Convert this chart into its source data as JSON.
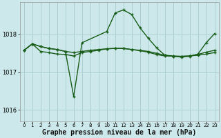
{
  "background_color": "#cce8eb",
  "grid_color": "#aacccc",
  "line_color": "#1a5c1a",
  "xlabel": "Graphe pression niveau de la mer (hPa)",
  "xlabel_fontsize": 7,
  "xlim": [
    -0.5,
    23.5
  ],
  "ylim": [
    1015.7,
    1018.85
  ],
  "yticks": [
    1016,
    1017,
    1018
  ],
  "xticks": [
    0,
    1,
    2,
    3,
    4,
    5,
    6,
    7,
    8,
    9,
    10,
    11,
    12,
    13,
    14,
    15,
    16,
    17,
    18,
    19,
    20,
    21,
    22,
    23
  ],
  "series1_x": [
    0,
    1,
    2,
    3,
    4,
    5,
    6,
    7,
    8,
    9,
    10,
    11,
    12,
    13,
    14,
    15,
    16,
    17,
    18,
    19,
    20,
    21,
    22,
    23
  ],
  "series1_y": [
    1017.58,
    1017.75,
    1017.68,
    1017.63,
    1017.6,
    1017.55,
    1017.52,
    1017.55,
    1017.58,
    1017.6,
    1017.62,
    1017.63,
    1017.63,
    1017.6,
    1017.58,
    1017.55,
    1017.5,
    1017.45,
    1017.43,
    1017.42,
    1017.43,
    1017.45,
    1017.48,
    1017.52
  ],
  "series2_x": [
    0,
    1,
    2,
    3,
    4,
    5,
    6,
    7,
    10,
    11,
    12,
    13,
    14,
    15,
    16,
    17,
    18,
    19,
    20,
    21,
    22,
    23
  ],
  "series2_y": [
    1017.58,
    1017.75,
    1017.68,
    1017.63,
    1017.6,
    1017.55,
    1016.35,
    1017.78,
    1018.08,
    1018.57,
    1018.65,
    1018.53,
    1018.18,
    1017.9,
    1017.65,
    1017.45,
    1017.42,
    1017.4,
    1017.42,
    1017.48,
    1017.78,
    1018.02
  ],
  "series3_x": [
    0,
    1,
    2,
    3,
    4,
    5,
    6,
    7,
    8,
    9,
    10,
    11,
    12,
    13,
    14,
    15,
    16,
    17,
    18,
    19,
    20,
    21,
    22,
    23
  ],
  "series3_y": [
    1017.58,
    1017.75,
    1017.55,
    1017.52,
    1017.48,
    1017.47,
    1017.43,
    1017.52,
    1017.55,
    1017.58,
    1017.62,
    1017.63,
    1017.63,
    1017.6,
    1017.57,
    1017.53,
    1017.47,
    1017.43,
    1017.42,
    1017.42,
    1017.43,
    1017.47,
    1017.53,
    1017.58
  ]
}
